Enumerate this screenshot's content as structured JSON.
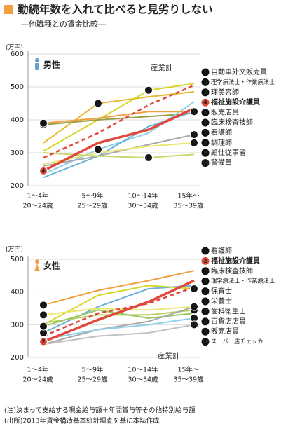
{
  "title": "勤続年数を入れて比べると見劣りしない",
  "subtitle": "―他職種との賃金比較―",
  "chart_data": [
    {
      "type": "line",
      "title": "男性",
      "unit": "(万円)",
      "grid": true,
      "categories": [
        [
          "1～4年",
          "20～24歳"
        ],
        [
          "5～9年",
          "25～29歳"
        ],
        [
          "10～14年",
          "30～34歳"
        ],
        [
          "15年～",
          "35～39歳"
        ]
      ],
      "ylim": [
        200,
        600
      ],
      "yticks": [
        200,
        300,
        400,
        500,
        600
      ],
      "series": [
        {
          "marker": 1,
          "name": "自動車外交販売員",
          "color": "#e8b830",
          "values": [
            330,
            450,
            470,
            485
          ]
        },
        {
          "marker": 2,
          "name": "理学療法士・作業療法士",
          "color": "#d6d62a",
          "values": [
            305,
            400,
            490,
            510
          ]
        },
        {
          "marker": 3,
          "name": "理美容師",
          "color": "#9aa04a",
          "values": [
            385,
            400,
            410,
            420
          ]
        },
        {
          "marker": 4,
          "name": "福祉施設介護員",
          "color": "#e0483c",
          "highlight": true,
          "values": [
            245,
            330,
            370,
            435
          ]
        },
        {
          "marker": 5,
          "name": "販売店員",
          "color": "#8fd0e8",
          "values": [
            235,
            310,
            360,
            455
          ]
        },
        {
          "marker": 6,
          "name": "臨床検査技師",
          "color": "#6db0d8",
          "values": [
            225,
            290,
            380,
            425
          ]
        },
        {
          "marker": 7,
          "name": "看護師",
          "color": "#f0a040",
          "values": [
            390,
            405,
            425,
            425
          ]
        },
        {
          "marker": 8,
          "name": "調理師",
          "color": "#a8a8a8",
          "values": [
            260,
            290,
            325,
            355
          ]
        },
        {
          "marker": 9,
          "name": "給仕従事者",
          "color": "#e8e870",
          "values": [
            265,
            300,
            320,
            330
          ]
        },
        {
          "marker": 10,
          "name": "警備員",
          "color": "#c8d870",
          "values": [
            300,
            290,
            285,
            295
          ]
        }
      ],
      "total": {
        "name": "産業計",
        "color": "#e0483c",
        "dashed": true,
        "values": [
          285,
          360,
          445,
          505
        ]
      }
    },
    {
      "type": "line",
      "title": "女性",
      "unit": "(万円)",
      "grid": true,
      "categories": [
        [
          "1～4年",
          "20～24歳"
        ],
        [
          "5～9年",
          "25～29歳"
        ],
        [
          "10～14年",
          "30～34歳"
        ],
        [
          "15年～",
          "35～39歳"
        ]
      ],
      "ylim": [
        200,
        500
      ],
      "yticks": [
        200,
        300,
        400,
        500
      ],
      "series": [
        {
          "marker": 1,
          "name": "看護師",
          "color": "#f0a040",
          "values": [
            360,
            405,
            435,
            465
          ]
        },
        {
          "marker": 2,
          "name": "福祉施設介護員",
          "color": "#e0483c",
          "highlight": true,
          "values": [
            248,
            315,
            370,
            435
          ]
        },
        {
          "marker": 3,
          "name": "臨床検査技師",
          "color": "#6db0d8",
          "values": [
            275,
            355,
            410,
            420
          ]
        },
        {
          "marker": 4,
          "name": "理学療法士・作業療法士",
          "color": "#d6d62a",
          "values": [
            300,
            390,
            420,
            410
          ]
        },
        {
          "marker": 5,
          "name": "保育士",
          "color": "#e8e870",
          "values": [
            330,
            350,
            345,
            355
          ]
        },
        {
          "marker": 6,
          "name": "栄養士",
          "color": "#b8d060",
          "values": [
            305,
            330,
            330,
            345
          ]
        },
        {
          "marker": 7,
          "name": "歯科衛生士",
          "color": "#9ac860",
          "values": [
            295,
            345,
            320,
            335
          ]
        },
        {
          "marker": 8,
          "name": "百貨店店員",
          "color": "#a8a8a8",
          "values": [
            240,
            285,
            310,
            355
          ]
        },
        {
          "marker": 9,
          "name": "販売店員",
          "color": "#8fd0e8",
          "values": [
            255,
            285,
            300,
            320
          ]
        },
        {
          "marker": 10,
          "name": "スーパー店チェッカー",
          "color": "#c0c0c0",
          "values": [
            240,
            265,
            275,
            300
          ]
        }
      ],
      "total": {
        "name": "産業計",
        "color": "#e0483c",
        "dashed": true,
        "values": [
          265,
          335,
          365,
          415
        ]
      }
    }
  ],
  "notes": [
    "(注)決まって支給する現金給与額＋年間賞与等その他特別給与額",
    "(出所)2013年賃金構造基本統計調査を基に本誌作成"
  ]
}
